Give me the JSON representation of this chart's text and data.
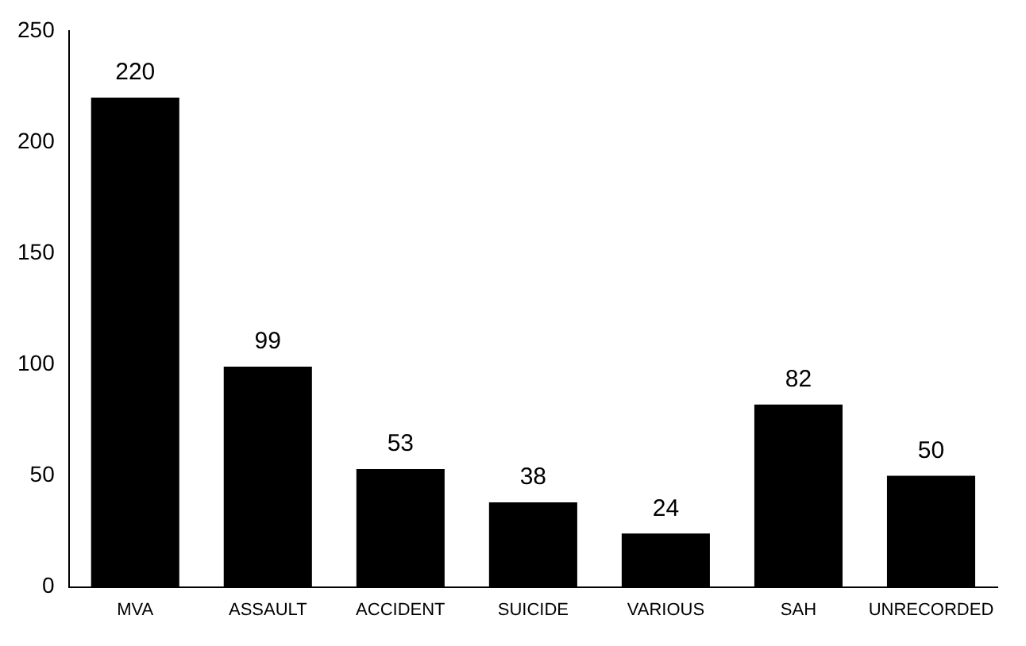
{
  "chart_data": {
    "type": "bar",
    "categories": [
      "MVA",
      "ASSAULT",
      "ACCIDENT",
      "SUICIDE",
      "VARIOUS",
      "SAH",
      "UNRECORDED"
    ],
    "values": [
      220,
      99,
      53,
      38,
      24,
      82,
      50
    ],
    "color": "#000000",
    "ylim": [
      0,
      250
    ],
    "yticks": [
      0,
      50,
      100,
      150,
      200,
      250
    ],
    "grid": false,
    "legend": false,
    "data_labels": true
  }
}
